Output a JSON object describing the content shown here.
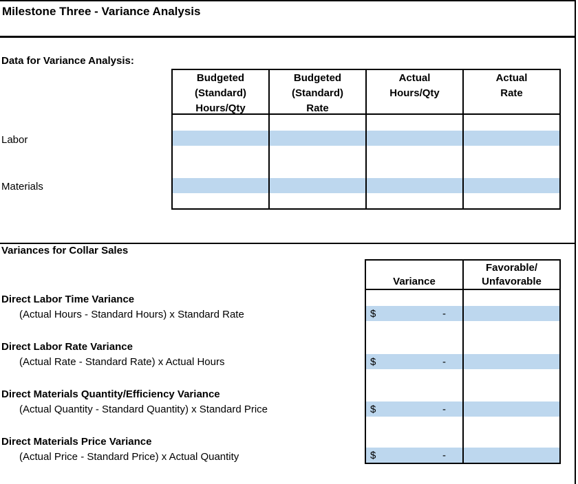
{
  "title": "Milestone Three - Variance Analysis",
  "colors": {
    "cell_highlight": "#BDD7EE",
    "grid_border": "#000000"
  },
  "data_section": {
    "heading": "Data for Variance Analysis:",
    "columns": [
      {
        "lines": [
          "Budgeted",
          "(Standard)",
          "Hours/Qty"
        ]
      },
      {
        "lines": [
          "Budgeted",
          "(Standard)",
          "Rate"
        ]
      },
      {
        "lines": [
          "Actual",
          "Hours/Qty"
        ]
      },
      {
        "lines": [
          "Actual",
          "Rate"
        ]
      }
    ],
    "rows": [
      {
        "label": "Labor"
      },
      {
        "label": "Materials"
      }
    ]
  },
  "variance_section": {
    "heading": "Variances for Collar Sales",
    "table": {
      "col1_header": "Variance",
      "col2_header_lines": [
        "Favorable/",
        "Unfavorable"
      ]
    },
    "items": [
      {
        "name": "Direct Labor Time Variance",
        "formula": "(Actual Hours - Standard Hours) x Standard Rate",
        "currency": "$",
        "amount": "-"
      },
      {
        "name": "Direct Labor Rate Variance",
        "formula": "(Actual Rate - Standard Rate) x Actual Hours",
        "currency": "$",
        "amount": "-"
      },
      {
        "name": "Direct Materials Quantity/Efficiency Variance",
        "formula": "(Actual Quantity - Standard Quantity) x Standard Price",
        "currency": "$",
        "amount": "-"
      },
      {
        "name": "Direct Materials Price Variance",
        "formula": "(Actual Price - Standard Price) x Actual Quantity",
        "currency": "$",
        "amount": "-"
      }
    ]
  }
}
